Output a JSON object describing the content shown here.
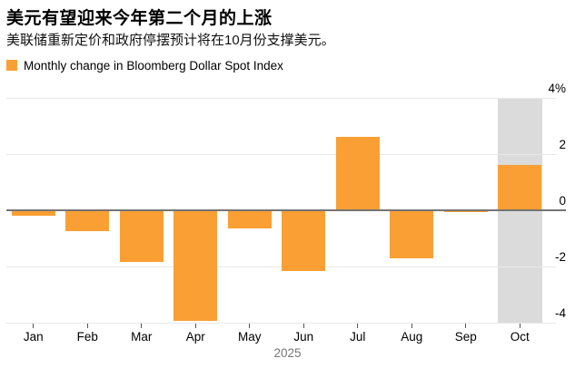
{
  "header": {
    "title": "美元有望迎来今年第二个月的上涨",
    "subtitle": "美联储重新定价和政府停摆预计将在10月份支撑美元。"
  },
  "legend": {
    "label": "Monthly change in Bloomberg Dollar Spot Index"
  },
  "colors": {
    "bar": "#FA9F33",
    "highlight_band": "#DBDBDB",
    "zero_line": "#757575",
    "gridline": "#E8E8E8",
    "tick": "#555555",
    "axis_text": "#000000",
    "year_text": "#767676"
  },
  "chart_data": {
    "type": "bar",
    "title": "Monthly change in Bloomberg Dollar Spot Index",
    "categories": [
      "Jan",
      "Feb",
      "Mar",
      "Apr",
      "May",
      "Jun",
      "Jul",
      "Aug",
      "Sep",
      "Oct"
    ],
    "values": [
      -0.2,
      -0.75,
      -1.85,
      -3.95,
      -0.65,
      -2.15,
      2.6,
      -1.7,
      -0.08,
      1.6
    ],
    "unit": "%",
    "xlabel": "2025",
    "ylabel": "",
    "ylim": [
      -4,
      4
    ],
    "yticks": [
      {
        "value": 4,
        "label": "4%"
      },
      {
        "value": 2,
        "label": "2"
      },
      {
        "value": 0,
        "label": "0"
      },
      {
        "value": -2,
        "label": "-2"
      },
      {
        "value": -4,
        "label": "-4"
      }
    ],
    "grid": true,
    "legend_position": "top-left",
    "highlighted_category": "Oct",
    "highlight_meaning": "current month (October)"
  }
}
